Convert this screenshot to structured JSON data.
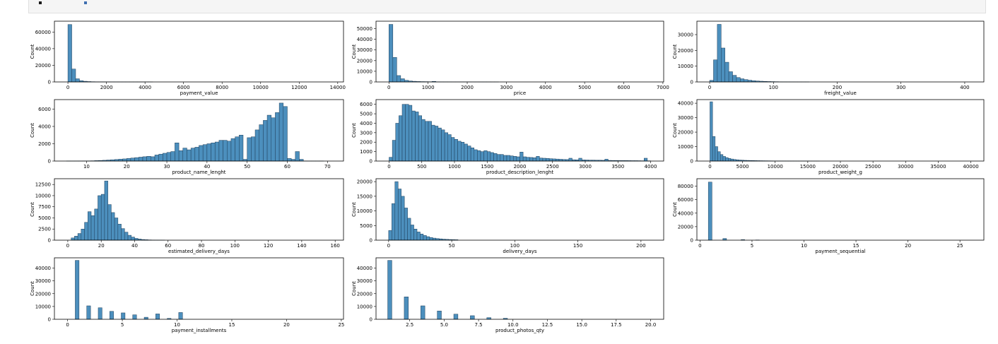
{
  "chart_data": [
    {
      "type": "bar",
      "xlabel": "payment_value",
      "ylabel": "Count",
      "xlim": [
        -700,
        14300
      ],
      "ylim": [
        0,
        73000
      ],
      "xticks": [
        0,
        2000,
        4000,
        6000,
        8000,
        10000,
        12000,
        14000
      ],
      "yticks": [
        0,
        20000,
        40000,
        60000
      ],
      "x0": 0,
      "bin_width": 200,
      "values": [
        69000,
        15500,
        3800,
        1500,
        800,
        450,
        280,
        180,
        120,
        90,
        60,
        40,
        30,
        20,
        15,
        10,
        8,
        5,
        4,
        3,
        2,
        2
      ]
    },
    {
      "type": "bar",
      "xlabel": "price",
      "ylabel": "Count",
      "xlim": [
        -330,
        7020
      ],
      "ylim": [
        0,
        57000
      ],
      "xticks": [
        0,
        1000,
        2000,
        3000,
        4000,
        5000,
        6000,
        7000
      ],
      "yticks": [
        0,
        10000,
        20000,
        30000,
        40000,
        50000
      ],
      "x0": 0,
      "bin_width": 100,
      "values": [
        54000,
        23000,
        6000,
        3000,
        1500,
        900,
        600,
        400,
        300,
        250,
        200,
        500,
        150,
        100,
        80,
        60,
        50,
        40,
        30,
        25,
        20,
        15,
        10,
        8,
        6,
        5,
        4,
        3
      ]
    },
    {
      "type": "bar",
      "xlabel": "freight_value",
      "ylabel": "Count",
      "xlim": [
        -20,
        430
      ],
      "ylim": [
        0,
        38500
      ],
      "xticks": [
        0,
        100,
        200,
        300,
        400
      ],
      "yticks": [
        0,
        10000,
        20000,
        30000
      ],
      "x0": 0,
      "bin_width": 6,
      "values": [
        1000,
        14000,
        36500,
        21500,
        12500,
        6500,
        4200,
        2800,
        2000,
        1500,
        1100,
        800,
        600,
        450,
        350,
        250,
        200,
        150,
        100,
        80,
        60,
        40,
        30,
        20,
        15,
        10
      ]
    },
    {
      "type": "bar",
      "xlabel": "product_name_lenght",
      "ylabel": "Count",
      "xlim": [
        2,
        74
      ],
      "ylim": [
        0,
        7100
      ],
      "xticks": [
        10,
        20,
        30,
        40,
        50,
        60,
        70
      ],
      "yticks": [
        0,
        2000,
        4000,
        6000
      ],
      "x0": 5,
      "bin_width": 1,
      "values": [
        5,
        5,
        8,
        10,
        15,
        20,
        30,
        50,
        70,
        90,
        120,
        150,
        180,
        220,
        250,
        300,
        350,
        400,
        450,
        500,
        550,
        500,
        700,
        800,
        900,
        1000,
        1100,
        2100,
        1200,
        1500,
        1300,
        1500,
        1600,
        1800,
        1900,
        2000,
        2100,
        2200,
        2400,
        2400,
        2300,
        2600,
        2800,
        3000,
        200,
        2700,
        2800,
        3600,
        4200,
        4700,
        5300,
        5000,
        5600,
        6700,
        6300,
        300,
        200,
        1100,
        200,
        10,
        5,
        5,
        5,
        5
      ]
    },
    {
      "type": "bar",
      "xlabel": "product_description_lenght",
      "ylabel": "Count",
      "xlim": [
        -200,
        4200
      ],
      "ylim": [
        0,
        6500
      ],
      "xticks": [
        0,
        500,
        1000,
        1500,
        2000,
        2500,
        3000,
        3500,
        4000
      ],
      "yticks": [
        0,
        1000,
        2000,
        3000,
        4000,
        5000,
        6000
      ],
      "x0": 0,
      "bin_width": 50,
      "values": [
        400,
        2200,
        4000,
        4800,
        6000,
        6000,
        5900,
        5300,
        5200,
        4800,
        4400,
        4200,
        4200,
        3800,
        3700,
        3500,
        3300,
        3000,
        2800,
        2500,
        2300,
        2100,
        2000,
        1800,
        1600,
        1400,
        1200,
        1100,
        1000,
        1100,
        1000,
        900,
        800,
        700,
        700,
        600,
        600,
        550,
        500,
        450,
        950,
        450,
        400,
        380,
        350,
        500,
        320,
        300,
        280,
        250,
        230,
        210,
        190,
        170,
        160,
        300,
        140,
        130,
        300,
        120,
        110,
        100,
        100,
        90,
        90,
        80,
        200,
        70,
        60,
        60,
        50,
        50,
        50,
        45,
        40,
        40,
        35,
        30,
        300,
        25
      ]
    },
    {
      "type": "bar",
      "xlabel": "product_weight_g",
      "ylabel": "Count",
      "xlim": [
        -2000,
        42000
      ],
      "ylim": [
        0,
        42500
      ],
      "xticks": [
        0,
        5000,
        10000,
        15000,
        20000,
        25000,
        30000,
        35000,
        40000
      ],
      "yticks": [
        0,
        10000,
        20000,
        30000,
        40000
      ],
      "x0": 0,
      "bin_width": 400,
      "values": [
        41000,
        17000,
        10000,
        6500,
        4500,
        3200,
        2400,
        1800,
        1400,
        1100,
        900,
        700,
        600,
        500,
        450,
        400,
        350,
        300,
        260,
        230,
        200,
        180,
        160,
        140,
        120,
        110,
        100,
        90,
        80,
        70,
        60,
        50,
        45,
        40,
        35,
        30,
        25,
        20,
        15,
        10,
        8,
        6
      ]
    },
    {
      "type": "bar",
      "xlabel": "estimated_delivery_days",
      "ylabel": "Count",
      "xlim": [
        -8,
        165
      ],
      "ylim": [
        0,
        13800
      ],
      "xticks": [
        0,
        20,
        40,
        60,
        80,
        100,
        120,
        140,
        160
      ],
      "yticks": [
        0,
        2500,
        5000,
        7500,
        10000,
        12500
      ],
      "x0": 2,
      "bin_width": 2,
      "values": [
        500,
        900,
        1500,
        2500,
        4000,
        6400,
        5500,
        7000,
        10000,
        10300,
        13300,
        8000,
        6200,
        5000,
        3600,
        2600,
        1800,
        1100,
        700,
        400,
        250,
        150,
        100,
        60,
        40,
        30,
        20,
        10
      ]
    },
    {
      "type": "bar",
      "xlabel": "delivery_days",
      "ylabel": "Count",
      "xlim": [
        -10,
        218
      ],
      "ylim": [
        0,
        21000
      ],
      "xticks": [
        0,
        50,
        100,
        150,
        200
      ],
      "yticks": [
        0,
        5000,
        10000,
        15000,
        20000
      ],
      "x0": 0,
      "bin_width": 2.5,
      "values": [
        3300,
        12500,
        20000,
        17500,
        15000,
        11000,
        7500,
        5200,
        3800,
        2800,
        2100,
        1600,
        1200,
        900,
        700,
        550,
        450,
        350,
        280,
        230,
        190,
        150
      ]
    },
    {
      "type": "bar",
      "xlabel": "payment_sequential",
      "ylabel": "Count",
      "xlim": [
        -0.3,
        27.3
      ],
      "ylim": [
        0,
        91000
      ],
      "xticks": [
        0,
        5,
        10,
        15,
        20,
        25
      ],
      "yticks": [
        0,
        20000,
        40000,
        60000,
        80000
      ],
      "x0": 0.8,
      "bin_width": 0.35,
      "values": [
        86000,
        0,
        0,
        0,
        2500,
        0,
        0,
        0,
        0,
        800,
        0,
        0,
        0,
        300
      ]
    },
    {
      "type": "bar",
      "xlabel": "payment_installments",
      "ylabel": "Count",
      "xlim": [
        -1.2,
        25.2
      ],
      "ylim": [
        0,
        48000
      ],
      "xticks": [
        0,
        5,
        10,
        15,
        20,
        25
      ],
      "yticks": [
        0,
        10000,
        20000,
        30000,
        40000
      ],
      "x0": 0.7,
      "bin_width": 0.35,
      "values": [
        46000,
        0,
        0,
        10500,
        0,
        0,
        9000,
        0,
        0,
        6200,
        0,
        0,
        5000,
        0,
        0,
        3500,
        0,
        0,
        1600,
        0,
        0,
        4200,
        0,
        0,
        700,
        0,
        0,
        5300
      ]
    },
    {
      "type": "bar",
      "xlabel": "product_photos_qty",
      "ylabel": "Count",
      "xlim": [
        0.05,
        20.95
      ],
      "ylim": [
        0,
        48000
      ],
      "xticks": [
        2.5,
        5.0,
        7.5,
        10.0,
        12.5,
        15.0,
        17.5,
        20.0
      ],
      "yticks": [
        0,
        10000,
        20000,
        30000,
        40000
      ],
      "x_ticklabels": [
        "2.5",
        "5.0",
        "7.5",
        "10.0",
        "12.5",
        "15.0",
        "17.5",
        "20.0"
      ],
      "x0": 0.9,
      "bin_width": 0.3,
      "values": [
        46000,
        0,
        0,
        0,
        17500,
        0,
        0,
        0,
        10500,
        0,
        0,
        0,
        6500,
        0,
        0,
        0,
        4000,
        0,
        0,
        0,
        2800,
        0,
        0,
        0,
        1300,
        0,
        0,
        0,
        800
      ]
    }
  ]
}
